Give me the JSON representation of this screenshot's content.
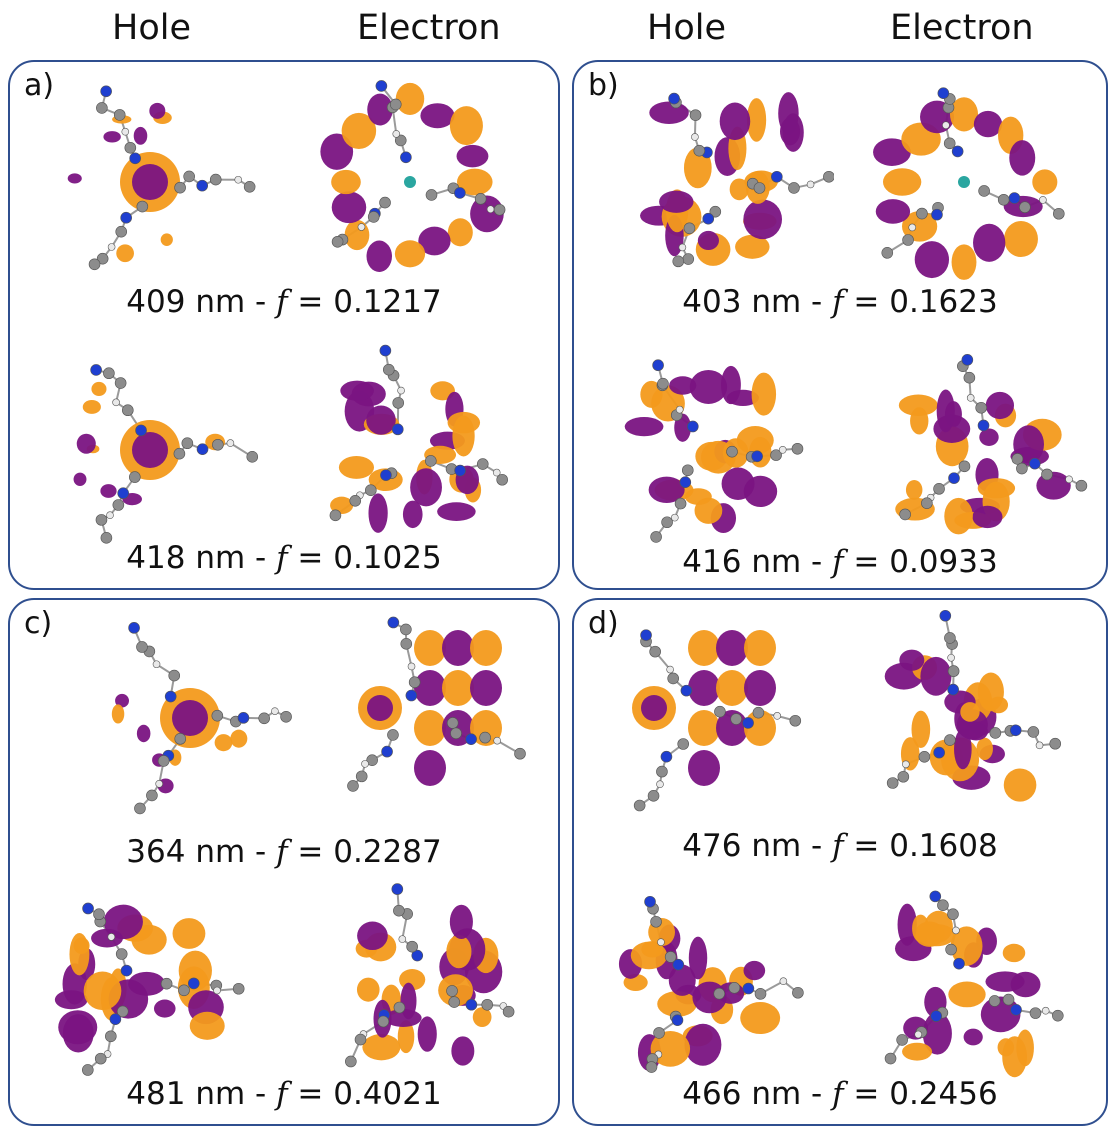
{
  "headers": {
    "left_hole": "Hole",
    "left_electron": "Electron",
    "right_hole": "Hole",
    "right_electron": "Electron"
  },
  "colors": {
    "orange": "#f39a1c",
    "purple": "#7a1482",
    "carbon": "#8c8c8c",
    "nitrogen": "#1f3fd0",
    "hydrogen": "#e9e9e9",
    "border": "#2f4f8f",
    "metal": "#2aa6a0"
  },
  "panels": [
    {
      "label": "a)",
      "rows": [
        {
          "nm": "409 nm - ",
          "f": "f",
          "val": " = 0.1217"
        },
        {
          "nm": "418 nm - ",
          "f": "f",
          "val": " = 0.1025"
        }
      ]
    },
    {
      "label": "b)",
      "rows": [
        {
          "nm": "403 nm - ",
          "f": "f",
          "val": " = 0.1623"
        },
        {
          "nm": "416 nm - ",
          "f": "f",
          "val": " = 0.0933"
        }
      ]
    },
    {
      "label": "c)",
      "rows": [
        {
          "nm": "364 nm - ",
          "f": "f",
          "val": " = 0.2287"
        },
        {
          "nm": "481 nm - ",
          "f": "f",
          "val": " = 0.4021"
        }
      ]
    },
    {
      "label": "d)",
      "rows": [
        {
          "nm": "476 nm - ",
          "f": "f",
          "val": " = 0.1608"
        },
        {
          "nm": "466 nm - ",
          "f": "f",
          "val": " = 0.2456"
        }
      ]
    }
  ]
}
